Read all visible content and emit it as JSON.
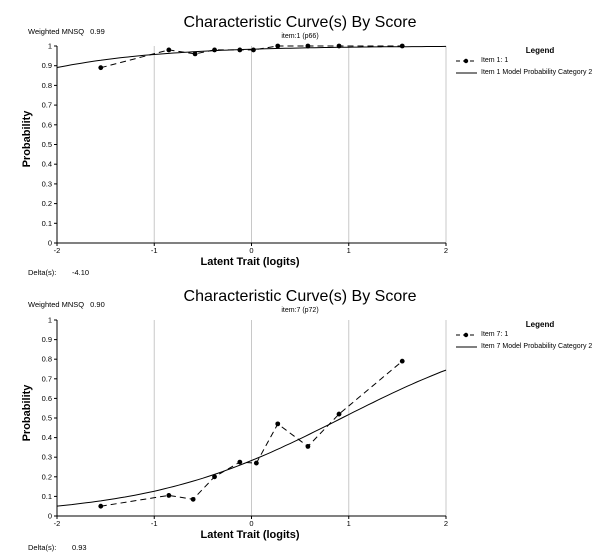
{
  "chart_data": [
    {
      "type": "line",
      "title": "Characteristic Curve(s) By Score",
      "subtitle": "item:1 (p66)",
      "weighted_mnsq_label": "Weighted MNSQ",
      "weighted_mnsq": "0.99",
      "delta_label": "Delta(s):",
      "delta": "-4.10",
      "xlabel": "Latent Trait (logits)",
      "ylabel": "Probability",
      "xlim": [
        -2,
        2
      ],
      "ylim": [
        0,
        1
      ],
      "xticks": [
        "-2",
        "-1",
        "0",
        "1",
        "2"
      ],
      "yticks": [
        "0",
        "0.1",
        "0.2",
        "0.3",
        "0.4",
        "0.5",
        "0.6",
        "0.7",
        "0.8",
        "0.9",
        "1"
      ],
      "grid": "vertical",
      "legend_title": "Legend",
      "legend_position": "right",
      "series": [
        {
          "name": "Item 1: 1",
          "style": "dashed-markers",
          "x": [
            -1.55,
            -0.85,
            -0.58,
            -0.38,
            -0.12,
            0.02,
            0.27,
            0.58,
            0.9,
            1.55
          ],
          "y": [
            0.89,
            0.98,
            0.96,
            0.98,
            0.98,
            0.98,
            1.0,
            1.0,
            1.0,
            1.0
          ]
        },
        {
          "name": "Item 1 Model Probability Category 2",
          "style": "solid",
          "model_delta": -4.1
        }
      ]
    },
    {
      "type": "line",
      "title": "Characteristic Curve(s) By Score",
      "subtitle": "item:7 (p72)",
      "weighted_mnsq_label": "Weighted MNSQ",
      "weighted_mnsq": "0.90",
      "delta_label": "Delta(s):",
      "delta": "0.93",
      "xlabel": "Latent Trait (logits)",
      "ylabel": "Probability",
      "xlim": [
        -2,
        2
      ],
      "ylim": [
        0,
        1
      ],
      "xticks": [
        "-2",
        "-1",
        "0",
        "1",
        "2"
      ],
      "yticks": [
        "0",
        "0.1",
        "0.2",
        "0.3",
        "0.4",
        "0.5",
        "0.6",
        "0.7",
        "0.8",
        "0.9",
        "1"
      ],
      "grid": "vertical",
      "legend_title": "Legend",
      "legend_position": "right",
      "series": [
        {
          "name": "Item 7: 1",
          "style": "dashed-markers",
          "x": [
            -1.55,
            -0.85,
            -0.6,
            -0.38,
            -0.12,
            0.05,
            0.27,
            0.58,
            0.9,
            1.55
          ],
          "y": [
            0.05,
            0.105,
            0.085,
            0.2,
            0.275,
            0.27,
            0.47,
            0.355,
            0.52,
            0.79
          ]
        },
        {
          "name": "Item 7 Model Probability Category 2",
          "style": "solid",
          "model_delta": 0.93
        }
      ]
    }
  ]
}
